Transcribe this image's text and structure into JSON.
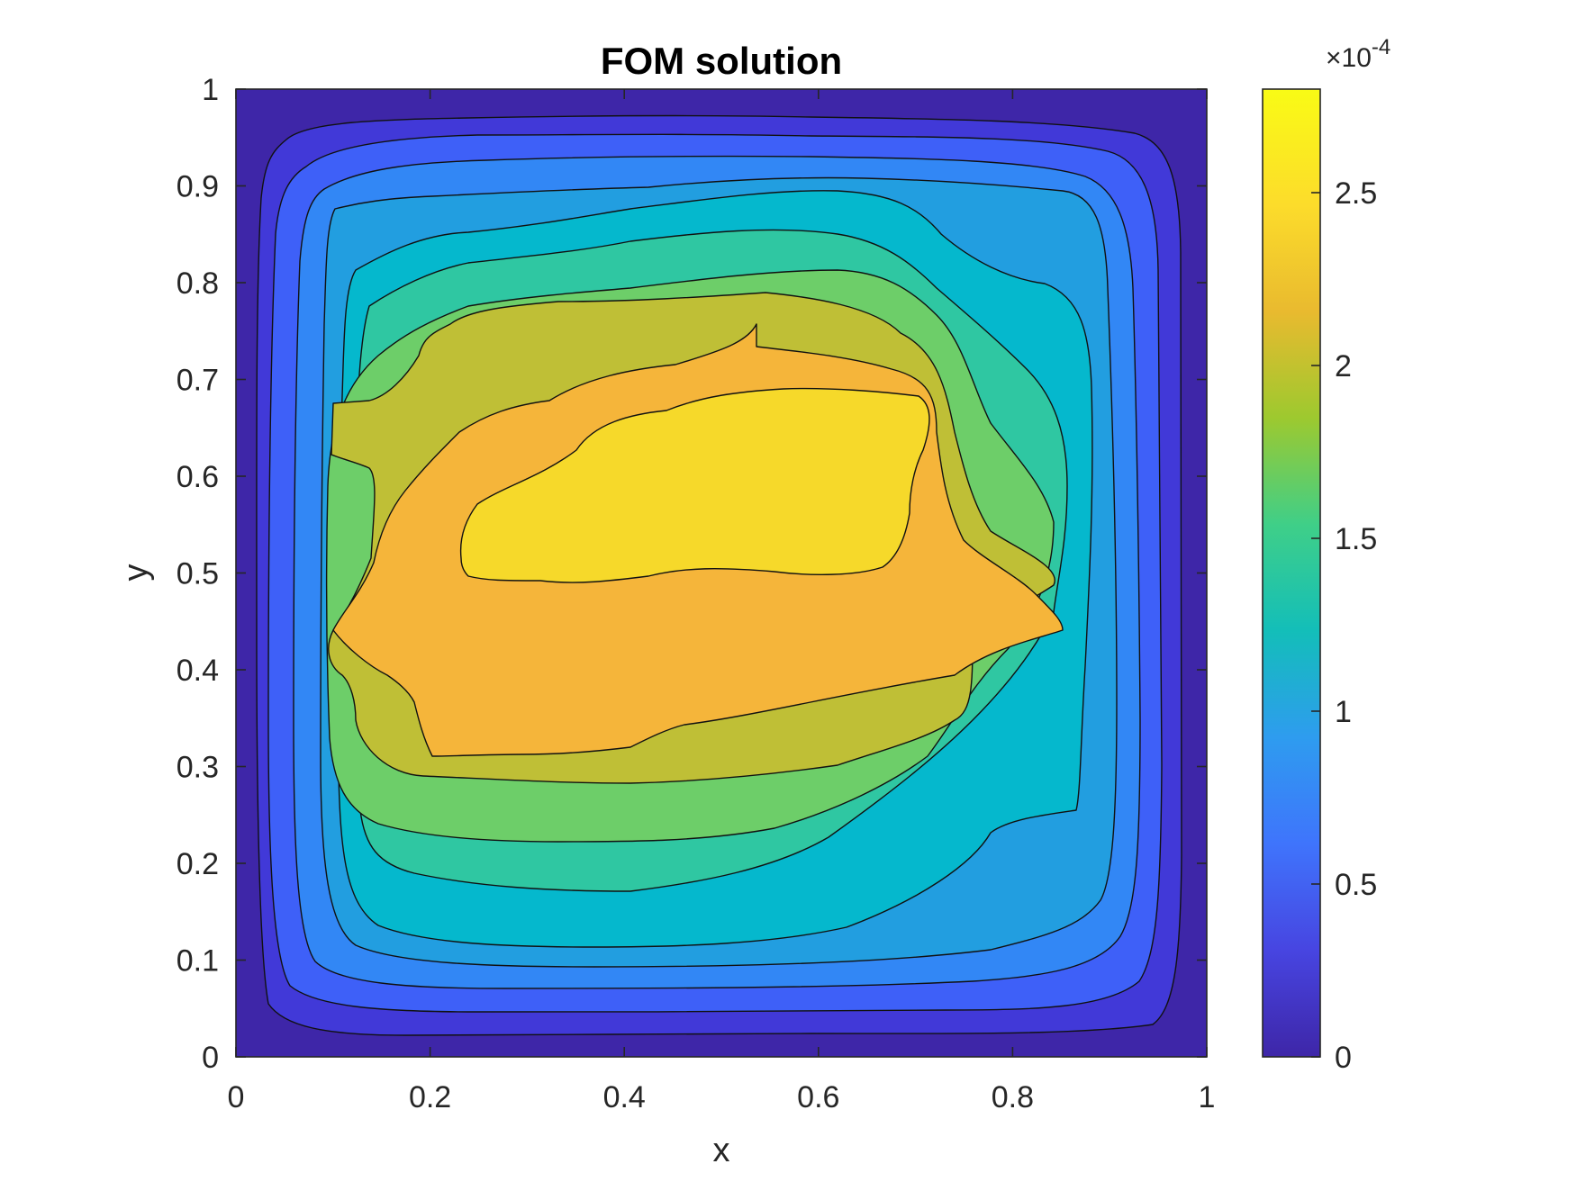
{
  "chart_data": {
    "type": "contour",
    "title": "FOM solution",
    "xlabel": "x",
    "ylabel": "y",
    "xlim": [
      0,
      1
    ],
    "ylim": [
      0,
      1
    ],
    "x_ticks": [
      "0",
      "0.2",
      "0.4",
      "0.6",
      "0.8",
      "1"
    ],
    "y_ticks": [
      "0",
      "0.1",
      "0.2",
      "0.3",
      "0.4",
      "0.5",
      "0.6",
      "0.7",
      "0.8",
      "0.9",
      "1"
    ],
    "colorbar": {
      "range": [
        0,
        0.00028
      ],
      "exponent_label": "×10",
      "exponent_power": "-4",
      "ticks": [
        "0",
        "0.5",
        "1",
        "1.5",
        "2",
        "2.5"
      ],
      "colormap": [
        "#3e26a8",
        "#4745e1",
        "#3f74fc",
        "#2e9cef",
        "#13beb9",
        "#3fcf88",
        "#9dc92f",
        "#e9ba2f",
        "#fcdc2b",
        "#f9fb15"
      ]
    },
    "levels": [
      {
        "value": 0.0,
        "color": "#3e26a8"
      },
      {
        "value": 2.75e-05,
        "color": "#4139d8"
      },
      {
        "value": 5.5e-05,
        "color": "#3e60f8"
      },
      {
        "value": 8.25e-05,
        "color": "#3287f5"
      },
      {
        "value": 0.00011,
        "color": "#229ee0"
      },
      {
        "value": 0.0001375,
        "color": "#05b8cd"
      },
      {
        "value": 0.000165,
        "color": "#2fc7a2"
      },
      {
        "value": 0.0001925,
        "color": "#6dce69"
      },
      {
        "value": 0.00022,
        "color": "#bfbf36"
      },
      {
        "value": 0.0002475,
        "color": "#f5b53a"
      },
      {
        "value": 0.000275,
        "color": "#f6d92a"
      }
    ]
  }
}
